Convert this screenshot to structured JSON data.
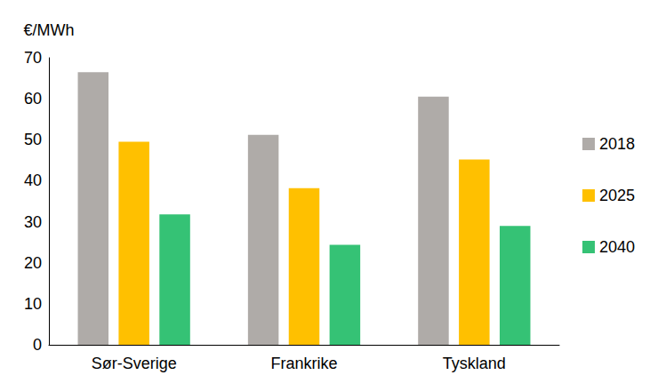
{
  "chart_data": {
    "type": "bar",
    "y_label": "€/MWh",
    "categories": [
      "Sør-Sverige",
      "Frankrike",
      "Tyskland"
    ],
    "series": [
      {
        "name": "2018",
        "color": "#afaba8",
        "values": [
          66.5,
          51.2,
          60.5
        ]
      },
      {
        "name": "2025",
        "color": "#ffc000",
        "values": [
          49.5,
          38.2,
          45.2
        ]
      },
      {
        "name": "2040",
        "color": "#35c275",
        "values": [
          31.8,
          24.4,
          29.0
        ]
      }
    ],
    "ylim": [
      0,
      70
    ],
    "yticks": [
      0,
      10,
      20,
      30,
      40,
      50,
      60,
      70
    ],
    "grid": false,
    "legend": "right"
  }
}
